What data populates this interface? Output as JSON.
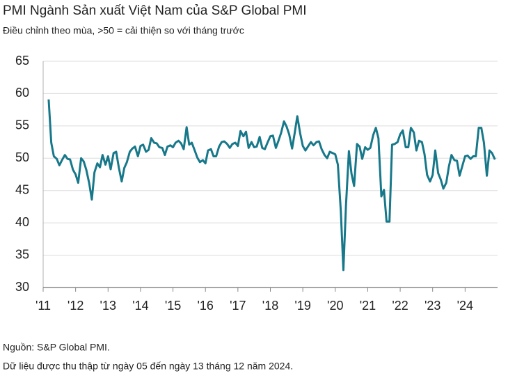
{
  "chart_data": {
    "type": "line",
    "title": "PMI Ngành Sản xuất Việt Nam của S&P Global PMI",
    "subtitle": "Điều chỉnh theo mùa, >50 = cải thiện so với tháng trước",
    "source": "Nguồn: S&P Global PMI.",
    "note": "Dữ liệu được thu thập từ ngày 05 đến ngày 13 tháng 12 năm 2024.",
    "xlim": [
      2011,
      2025
    ],
    "xticks": [
      {
        "value": 2011,
        "label": "'11"
      },
      {
        "value": 2012,
        "label": "'12"
      },
      {
        "value": 2013,
        "label": "'13"
      },
      {
        "value": 2014,
        "label": "'14"
      },
      {
        "value": 2015,
        "label": "'15"
      },
      {
        "value": 2016,
        "label": "'16"
      },
      {
        "value": 2017,
        "label": "'17"
      },
      {
        "value": 2018,
        "label": "'18"
      },
      {
        "value": 2019,
        "label": "'19"
      },
      {
        "value": 2020,
        "label": "'20"
      },
      {
        "value": 2021,
        "label": "'21"
      },
      {
        "value": 2022,
        "label": "'22"
      },
      {
        "value": 2023,
        "label": "'23"
      },
      {
        "value": 2024,
        "label": "'24"
      }
    ],
    "ylim": [
      30,
      65
    ],
    "yticks": [
      30,
      35,
      40,
      45,
      50,
      55,
      60,
      65
    ],
    "grid": true,
    "x": [
      2011.17,
      2011.25,
      2011.33,
      2011.42,
      2011.5,
      2011.58,
      2011.67,
      2011.75,
      2011.83,
      2011.92,
      2012,
      2012.08,
      2012.17,
      2012.25,
      2012.33,
      2012.42,
      2012.5,
      2012.58,
      2012.67,
      2012.75,
      2012.83,
      2012.92,
      2013,
      2013.08,
      2013.17,
      2013.25,
      2013.33,
      2013.42,
      2013.5,
      2013.58,
      2013.67,
      2013.75,
      2013.83,
      2013.92,
      2014,
      2014.08,
      2014.17,
      2014.25,
      2014.33,
      2014.42,
      2014.5,
      2014.58,
      2014.67,
      2014.75,
      2014.83,
      2014.92,
      2015,
      2015.08,
      2015.17,
      2015.25,
      2015.33,
      2015.42,
      2015.5,
      2015.58,
      2015.67,
      2015.75,
      2015.83,
      2015.92,
      2016,
      2016.08,
      2016.17,
      2016.25,
      2016.33,
      2016.42,
      2016.5,
      2016.58,
      2016.67,
      2016.75,
      2016.83,
      2016.92,
      2017,
      2017.08,
      2017.17,
      2017.25,
      2017.33,
      2017.42,
      2017.5,
      2017.58,
      2017.67,
      2017.75,
      2017.83,
      2017.92,
      2018,
      2018.08,
      2018.17,
      2018.25,
      2018.33,
      2018.42,
      2018.5,
      2018.58,
      2018.67,
      2018.75,
      2018.83,
      2018.92,
      2019,
      2019.08,
      2019.17,
      2019.25,
      2019.33,
      2019.42,
      2019.5,
      2019.58,
      2019.67,
      2019.75,
      2019.83,
      2019.92,
      2020,
      2020.08,
      2020.17,
      2020.25,
      2020.33,
      2020.42,
      2020.5,
      2020.58,
      2020.67,
      2020.75,
      2020.83,
      2020.92,
      2021,
      2021.08,
      2021.17,
      2021.25,
      2021.33,
      2021.42,
      2021.5,
      2021.58,
      2021.67,
      2021.75,
      2021.83,
      2021.92,
      2022,
      2022.08,
      2022.17,
      2022.25,
      2022.33,
      2022.42,
      2022.5,
      2022.58,
      2022.67,
      2022.75,
      2022.83,
      2022.92,
      2023,
      2023.08,
      2023.17,
      2023.25,
      2023.33,
      2023.42,
      2023.5,
      2023.58,
      2023.67,
      2023.75,
      2023.83,
      2023.92,
      2024,
      2024.08,
      2024.17,
      2024.25,
      2024.33,
      2024.42,
      2024.5,
      2024.58,
      2024.67,
      2024.75,
      2024.83,
      2024.92
    ],
    "series": [
      {
        "color": "#17788a",
        "values": [
          59.1,
          52.4,
          50.3,
          49.9,
          48.9,
          49.7,
          50.5,
          49.9,
          49.8,
          48.2,
          47.5,
          46.2,
          50.0,
          49.5,
          48.2,
          46.1,
          43.6,
          47.8,
          49.2,
          48.6,
          50.5,
          49.0,
          50.3,
          48.3,
          50.8,
          51.0,
          48.6,
          46.4,
          48.5,
          49.4,
          51.0,
          51.5,
          51.8,
          50.3,
          51.9,
          52.1,
          51.0,
          51.3,
          53.1,
          52.4,
          52.3,
          51.7,
          51.6,
          50.5,
          51.8,
          52.0,
          51.7,
          52.4,
          52.7,
          52.3,
          51.4,
          54.8,
          52.1,
          52.4,
          51.2,
          50.1,
          49.4,
          49.7,
          49.2,
          51.2,
          51.4,
          50.3,
          50.3,
          51.8,
          52.5,
          52.6,
          52.2,
          51.6,
          52.2,
          52.4,
          51.9,
          54.2,
          53.4,
          54.1,
          51.6,
          52.5,
          51.7,
          51.8,
          53.3,
          51.6,
          51.4,
          52.5,
          53.4,
          53.5,
          51.6,
          52.7,
          53.9,
          55.7,
          54.9,
          53.7,
          51.5,
          53.9,
          56.5,
          53.8,
          51.9,
          51.2,
          51.9,
          52.5,
          52.0,
          52.5,
          52.6,
          51.4,
          50.5,
          50.0,
          51.0,
          50.8,
          50.6,
          49.0,
          41.9,
          32.7,
          42.7,
          51.1,
          47.6,
          45.7,
          52.2,
          51.8,
          49.9,
          51.7,
          51.3,
          51.6,
          53.6,
          54.7,
          53.1,
          44.1,
          45.1,
          40.2,
          40.2,
          52.1,
          52.2,
          52.5,
          53.7,
          54.3,
          51.7,
          51.7,
          54.7,
          54.0,
          51.2,
          52.7,
          52.5,
          50.6,
          47.4,
          46.4,
          47.4,
          51.2,
          47.7,
          46.7,
          45.3,
          46.2,
          48.7,
          50.5,
          49.7,
          49.6,
          47.3,
          48.9,
          50.3,
          50.4,
          49.9,
          50.3,
          50.3,
          54.7,
          54.7,
          52.4,
          47.3,
          51.2,
          50.8,
          49.8
        ]
      }
    ]
  }
}
